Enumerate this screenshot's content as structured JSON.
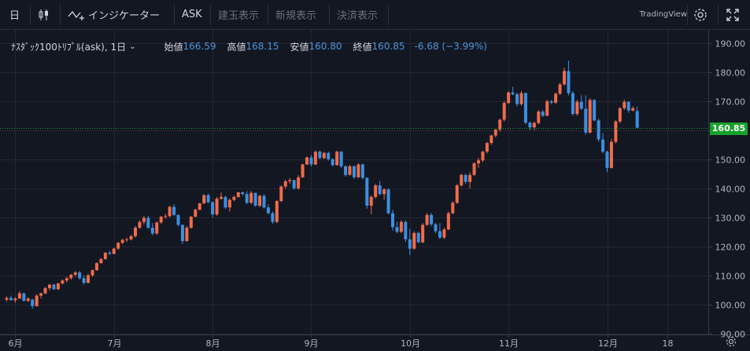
{
  "toolbar": {
    "interval_label": "日",
    "indicators_label": "インジケーター",
    "ask_label": "ASK",
    "position_label": "建玉表示",
    "new_order_label": "新規表示",
    "settlement_label": "決済表示",
    "brand_label": "TradingView"
  },
  "legend": {
    "symbol": "ﾅｽﾀﾞｯｸ100ﾄﾘﾌﾟﾙ(ask), 1日",
    "open_label": "始値",
    "open": "166.59",
    "high_label": "高値",
    "high": "168.15",
    "low_label": "安値",
    "low": "160.80",
    "close_label": "終値",
    "close": "160.85",
    "change": "-6.68 (−3.99%)"
  },
  "colors": {
    "up": "#ef6c4a",
    "down": "#3c8fe0",
    "background": "#131722",
    "grid": "#242733",
    "current_price": "#16a12b"
  },
  "chart_data": {
    "type": "candlestick",
    "title": "ﾅｽﾀﾞｯｸ100ﾄﾘﾌﾟﾙ(ask), 1日",
    "x_tick_labels": [
      "6月",
      "7月",
      "8月",
      "9月",
      "10月",
      "11月",
      "12月",
      "18"
    ],
    "x_tick_positions_bar_index": [
      2,
      25,
      48,
      71,
      94,
      117,
      140,
      154
    ],
    "y_tick_labels": [
      "90.00",
      "100.00",
      "110.00",
      "120.00",
      "130.00",
      "140.00",
      "150.00",
      "160.00",
      "170.00",
      "180.00",
      "190.00"
    ],
    "ylim": [
      89.6,
      194.6
    ],
    "current_price": 160.85,
    "current_price_label": "160.85",
    "grid": true,
    "candles": [
      [
        101.6,
        102.8,
        101,
        102.2
      ],
      [
        102.2,
        103,
        101.5,
        101.4
      ],
      [
        101.4,
        102.5,
        100.6,
        102
      ],
      [
        102,
        104.5,
        101.8,
        103.8
      ],
      [
        103.8,
        104,
        101,
        101.2
      ],
      [
        101.2,
        102.5,
        100.8,
        102
      ],
      [
        101.6,
        102,
        98.5,
        99.4
      ],
      [
        99.4,
        103.5,
        99.2,
        103
      ],
      [
        103,
        104,
        102,
        103.8
      ],
      [
        103.8,
        106,
        103.5,
        105.6
      ],
      [
        105.6,
        107,
        104.8,
        106.8
      ],
      [
        106.8,
        107,
        105,
        105.2
      ],
      [
        105.2,
        107.5,
        105,
        107.2
      ],
      [
        107.2,
        108.6,
        106.8,
        108.2
      ],
      [
        108.2,
        109.5,
        107.5,
        109
      ],
      [
        109,
        110.5,
        108.5,
        110.2
      ],
      [
        110.2,
        111.5,
        109.5,
        111
      ],
      [
        111,
        111.5,
        108.5,
        109
      ],
      [
        109,
        110,
        106.8,
        107.4
      ],
      [
        107.4,
        110.5,
        107.2,
        110
      ],
      [
        110,
        112,
        109.5,
        111.8
      ],
      [
        111.8,
        114.5,
        111.5,
        114.2
      ],
      [
        114.2,
        116,
        114,
        115.6
      ],
      [
        115.6,
        118,
        115.4,
        117.8
      ],
      [
        117.8,
        118.5,
        117,
        117.4
      ],
      [
        117.4,
        119.5,
        117.2,
        119.2
      ],
      [
        119.2,
        121.6,
        118.8,
        121.2
      ],
      [
        121.2,
        122.6,
        120.8,
        122.2
      ],
      [
        122.2,
        123,
        121.5,
        122.4
      ],
      [
        122.4,
        124,
        122,
        123.5
      ],
      [
        123.5,
        127,
        123,
        126.4
      ],
      [
        126.4,
        129,
        126,
        128.4
      ],
      [
        128.4,
        130.5,
        127.5,
        129.8
      ],
      [
        129.8,
        130.5,
        126,
        126.4
      ],
      [
        126.4,
        128,
        123.8,
        124.4
      ],
      [
        124.4,
        128.5,
        124,
        128.2
      ],
      [
        128.2,
        130.5,
        127.8,
        130.2
      ],
      [
        130.2,
        131.2,
        129.5,
        130.4
      ],
      [
        130.4,
        134,
        130,
        133.6
      ],
      [
        133.6,
        134.5,
        130.5,
        130.8
      ],
      [
        130.8,
        131,
        126.8,
        127.4
      ],
      [
        127.4,
        127.5,
        120.8,
        121.8
      ],
      [
        121.8,
        127,
        121.5,
        126.4
      ],
      [
        126.4,
        130.5,
        126,
        130.2
      ],
      [
        130.2,
        133,
        130,
        132.6
      ],
      [
        132.6,
        135,
        132.4,
        134.8
      ],
      [
        134.8,
        138,
        134.6,
        137.6
      ],
      [
        137.6,
        138.2,
        134.8,
        135.2
      ],
      [
        135.2,
        135.5,
        130,
        131
      ],
      [
        131,
        137,
        130.5,
        136.4
      ],
      [
        136.4,
        138.5,
        136,
        137
      ],
      [
        137,
        137.4,
        132.8,
        133.4
      ],
      [
        133.4,
        136.5,
        132,
        136
      ],
      [
        136,
        137.5,
        135.5,
        137
      ],
      [
        137,
        138.8,
        136.8,
        138.6
      ],
      [
        138.6,
        138.9,
        137.5,
        138
      ],
      [
        138,
        139,
        134.5,
        135
      ],
      [
        135,
        139,
        134.5,
        138.4
      ],
      [
        138.4,
        138.5,
        133.6,
        134
      ],
      [
        134,
        137.8,
        133.5,
        137.4
      ],
      [
        137.4,
        138,
        133,
        133.4
      ],
      [
        133.4,
        134.5,
        131,
        131.4
      ],
      [
        131.4,
        132,
        127.8,
        128.4
      ],
      [
        128.4,
        136,
        128,
        135.6
      ],
      [
        135.6,
        141,
        135.2,
        140.6
      ],
      [
        140.6,
        143,
        139.8,
        142.4
      ],
      [
        142.4,
        143.5,
        141.5,
        142.8
      ],
      [
        142.8,
        143,
        139.5,
        140
      ],
      [
        140,
        144.5,
        139.5,
        143.8
      ],
      [
        143.8,
        148.5,
        143.5,
        148.2
      ],
      [
        148.2,
        151,
        148,
        150.6
      ],
      [
        150.6,
        151.5,
        147.5,
        148.2
      ],
      [
        148.2,
        153,
        148,
        152.6
      ],
      [
        152.6,
        153,
        150,
        150.4
      ],
      [
        150.4,
        152.5,
        150,
        152.2
      ],
      [
        152.2,
        152.6,
        149.5,
        150
      ],
      [
        150,
        150.5,
        147.5,
        148
      ],
      [
        148,
        153,
        147.8,
        152.6
      ],
      [
        152.6,
        152.8,
        147,
        147.6
      ],
      [
        147.6,
        147.8,
        144,
        144.6
      ],
      [
        144.6,
        148,
        144.4,
        147.6
      ],
      [
        147.6,
        147.8,
        143.2,
        143.8
      ],
      [
        143.8,
        148.6,
        143.5,
        148.2
      ],
      [
        148.2,
        148.5,
        143,
        143.6
      ],
      [
        143.6,
        143.8,
        133,
        134
      ],
      [
        134,
        137.5,
        131,
        137
      ],
      [
        137,
        141.5,
        136.5,
        141
      ],
      [
        141,
        142.5,
        137.5,
        138
      ],
      [
        138,
        140,
        136,
        139.6
      ],
      [
        139.6,
        140,
        131,
        131.4
      ],
      [
        131.4,
        132.6,
        125.5,
        126.6
      ],
      [
        126.6,
        128.5,
        124.5,
        125
      ],
      [
        125,
        129,
        124.5,
        128.4
      ],
      [
        128.4,
        129,
        121.5,
        122.4
      ],
      [
        122.4,
        126,
        117,
        119.2
      ],
      [
        119.2,
        125.2,
        118.8,
        124.6
      ],
      [
        124.6,
        125,
        121,
        121.4
      ],
      [
        121.4,
        128,
        121,
        127.4
      ],
      [
        127.4,
        131.5,
        127,
        130.8
      ],
      [
        130.8,
        131.5,
        127,
        127.6
      ],
      [
        127.6,
        128,
        124.5,
        125.2
      ],
      [
        125.2,
        128,
        122.5,
        123
      ],
      [
        123,
        126.5,
        122.5,
        125.8
      ],
      [
        125.8,
        132,
        125.5,
        131.4
      ],
      [
        131.4,
        135.5,
        131,
        135
      ],
      [
        135,
        141.5,
        134.6,
        141
      ],
      [
        141,
        145,
        140.6,
        144.6
      ],
      [
        144.6,
        145,
        141.5,
        142.2
      ],
      [
        142.2,
        145.5,
        140,
        144.6
      ],
      [
        144.6,
        149,
        144.2,
        148.6
      ],
      [
        148.6,
        150.5,
        147,
        149.6
      ],
      [
        149.6,
        153,
        149,
        152.6
      ],
      [
        152.6,
        156,
        152,
        155.6
      ],
      [
        155.6,
        158.5,
        155,
        158.2
      ],
      [
        158.2,
        160.5,
        157.5,
        160.2
      ],
      [
        160.2,
        164,
        159.5,
        163.6
      ],
      [
        163.6,
        170,
        163,
        169.4
      ],
      [
        169.4,
        173.5,
        169,
        173
      ],
      [
        173,
        175,
        172,
        172.4
      ],
      [
        172.4,
        173,
        168.2,
        169
      ],
      [
        169,
        173.5,
        168.5,
        172.8
      ],
      [
        172.8,
        173,
        162,
        162.6
      ],
      [
        162.6,
        163,
        160,
        161
      ],
      [
        161,
        163,
        160,
        162.5
      ],
      [
        162.5,
        167,
        162,
        166.4
      ],
      [
        166.4,
        167,
        164.5,
        165
      ],
      [
        165,
        170.5,
        164.8,
        170
      ],
      [
        170,
        170.5,
        169,
        169.5
      ],
      [
        169.5,
        173,
        169,
        172.6
      ],
      [
        172.6,
        176.5,
        172.2,
        175.8
      ],
      [
        175.8,
        181.5,
        175.4,
        180.4
      ],
      [
        180.4,
        184,
        172,
        172.8
      ],
      [
        172.8,
        173.5,
        165,
        165.6
      ],
      [
        165.6,
        170.5,
        165,
        169.8
      ],
      [
        169.8,
        172,
        167,
        167.4
      ],
      [
        167.4,
        172,
        158.5,
        159.2
      ],
      [
        159.2,
        171,
        158.8,
        170.4
      ],
      [
        170.4,
        170.8,
        163,
        163.4
      ],
      [
        163.4,
        164,
        156,
        156.8
      ],
      [
        156.8,
        159,
        152,
        152.6
      ],
      [
        152.6,
        153,
        145.5,
        147
      ],
      [
        147,
        157,
        146.8,
        156
      ],
      [
        156,
        163.5,
        155.5,
        163
      ],
      [
        163,
        168,
        162.5,
        167.6
      ],
      [
        167.6,
        170.5,
        167,
        169.8
      ],
      [
        169.8,
        170,
        166,
        166.8
      ],
      [
        166.8,
        168.2,
        166.5,
        167.6
      ],
      [
        166.59,
        168.15,
        160.8,
        160.85
      ]
    ]
  }
}
